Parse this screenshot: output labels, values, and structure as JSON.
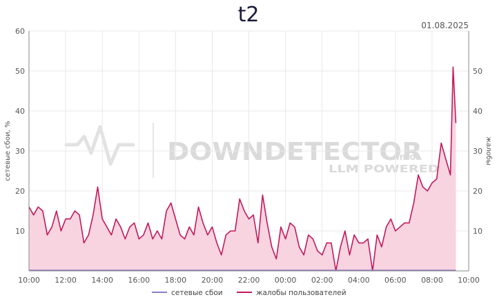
{
  "chart_data": {
    "type": "area",
    "title": "t2",
    "date": "01.08.2025",
    "ylabel_left": "сетевые сбои, %",
    "ylabel_right": "жалобы",
    "ylim": [
      0,
      60
    ],
    "yticks_left": [
      "10",
      "20",
      "30",
      "40",
      "50",
      "60"
    ],
    "yticks_right": [
      "10",
      "20",
      "30",
      "40",
      "50"
    ],
    "xlim_hours": [
      10,
      34
    ],
    "xtick_labels": [
      "10:00",
      "12:00",
      "14:00",
      "16:00",
      "18:00",
      "20:00",
      "22:00",
      "00:00",
      "02:00",
      "04:00",
      "06:00",
      "08:00",
      "10:00"
    ],
    "grid": true,
    "legend_position": "bottom",
    "watermark": "DOWNDETECTOR LLM POWERED",
    "series": [
      {
        "name": "сетевые сбои",
        "color": "#8e7cc3",
        "x": [
          10.0,
          33.3
        ],
        "values": [
          0,
          0
        ]
      },
      {
        "name": "жалобы пользователей",
        "color": "#c2185b",
        "fill": "#f8d3e0",
        "x": [
          10.0,
          10.25,
          10.5,
          10.75,
          11.0,
          11.25,
          11.5,
          11.75,
          12.0,
          12.25,
          12.5,
          12.75,
          13.0,
          13.25,
          13.5,
          13.75,
          14.0,
          14.25,
          14.5,
          14.75,
          15.0,
          15.25,
          15.5,
          15.75,
          16.0,
          16.25,
          16.5,
          16.75,
          17.0,
          17.25,
          17.5,
          17.75,
          18.0,
          18.25,
          18.5,
          18.75,
          19.0,
          19.25,
          19.5,
          19.75,
          20.0,
          20.25,
          20.5,
          20.75,
          21.0,
          21.25,
          21.5,
          21.75,
          22.0,
          22.25,
          22.5,
          22.75,
          23.0,
          23.25,
          23.5,
          23.75,
          24.0,
          24.25,
          24.5,
          24.75,
          25.0,
          25.25,
          25.5,
          25.75,
          26.0,
          26.25,
          26.5,
          26.75,
          27.0,
          27.25,
          27.5,
          27.75,
          28.0,
          28.25,
          28.5,
          28.75,
          29.0,
          29.25,
          29.5,
          29.75,
          30.0,
          30.25,
          30.5,
          30.75,
          31.0,
          31.25,
          31.5,
          31.75,
          32.0,
          32.25,
          32.5,
          32.75,
          33.0,
          33.15,
          33.3
        ],
        "values": [
          16,
          14,
          16,
          15,
          9,
          11,
          15,
          10,
          13,
          13,
          15,
          14,
          7,
          9,
          14,
          21,
          13,
          11,
          9,
          13,
          11,
          8,
          11,
          12,
          8,
          9,
          12,
          8,
          10,
          8,
          15,
          17,
          13,
          9,
          8,
          11,
          9,
          16,
          12,
          9,
          11,
          7,
          4,
          9,
          10,
          10,
          18,
          15,
          13,
          14,
          7,
          19,
          12,
          6,
          3,
          11,
          8,
          12,
          11,
          6,
          4,
          9,
          8,
          5,
          4,
          7,
          7,
          0,
          6,
          10,
          4,
          9,
          7,
          7,
          8,
          0,
          9,
          6,
          11,
          13,
          10,
          11,
          12,
          12,
          17,
          24,
          21,
          20,
          22,
          23,
          32,
          28,
          24,
          51,
          37
        ]
      }
    ]
  }
}
